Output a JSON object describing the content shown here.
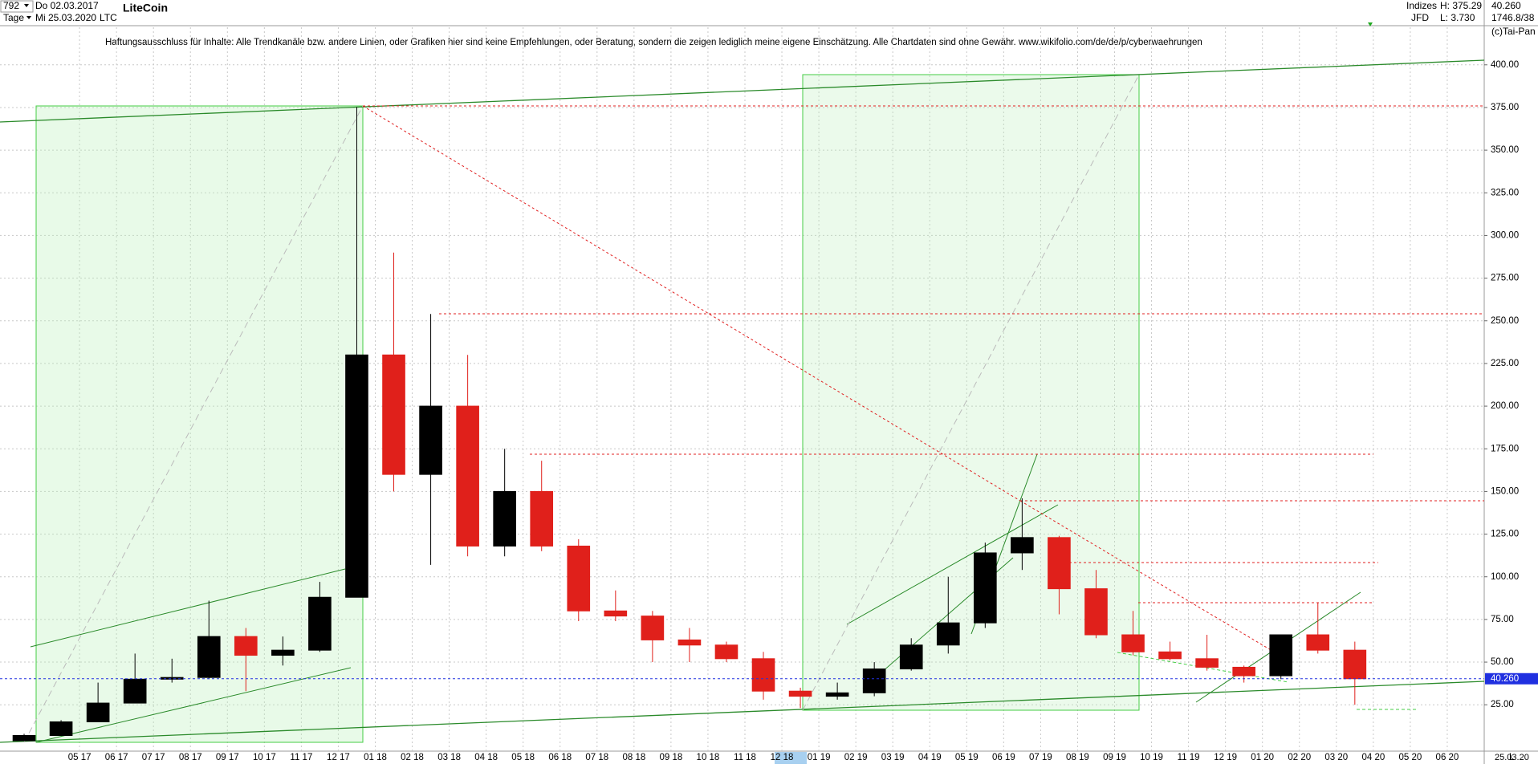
{
  "header": {
    "count": "792",
    "period": "Tage",
    "start_date": "Do 02.03.2017",
    "end_date": "Mi 25.03.2020",
    "instrument": "LiteCoin",
    "symbol": "LTC",
    "group": "Indizes",
    "source": "JFD",
    "high": "H: 375.29",
    "low": "L: 3.730",
    "last": "40.260",
    "info": "1746.8/38",
    "copyright": "(c)Tai-Pan",
    "footer_scale": "L",
    "footer_date": "25.03.20"
  },
  "chart_data": {
    "type": "candlestick",
    "subtitle": "Haftungsausschluss für Inhalte: Alle Trendkanäle bzw. andere Linien, oder Grafiken hier sind keine Empfehlungen, oder Beratung, sondern die zeigen lediglich meine eigene Einschätzung. Alle Chartdaten sind ohne Gewähr.  www.wikifolio.com/de/de/p/cyberwaehrungen",
    "x": [
      "2017-03",
      "2017-04",
      "2017-05",
      "2017-06",
      "2017-07",
      "2017-08",
      "2017-09",
      "2017-10",
      "2017-11",
      "2017-12",
      "2018-01",
      "2018-02",
      "2018-03",
      "2018-04",
      "2018-05",
      "2018-06",
      "2018-07",
      "2018-08",
      "2018-09",
      "2018-10",
      "2018-11",
      "2018-12",
      "2019-01",
      "2019-02",
      "2019-03",
      "2019-04",
      "2019-05",
      "2019-06",
      "2019-07",
      "2019-08",
      "2019-09",
      "2019-10",
      "2019-11",
      "2019-12",
      "2020-01",
      "2020-02",
      "2020-03"
    ],
    "open": [
      3.9,
      7,
      15,
      26,
      40,
      41,
      65,
      54,
      57,
      88,
      230,
      160,
      200,
      118,
      150,
      118,
      80,
      77,
      63,
      60,
      52,
      33,
      30,
      32,
      46,
      60,
      73,
      114,
      123,
      93,
      66,
      56,
      52,
      47,
      42,
      66,
      57
    ],
    "high": [
      8,
      16,
      38,
      55,
      52,
      86,
      70,
      65,
      97,
      375.29,
      290,
      254,
      230,
      175,
      168,
      122,
      92,
      80,
      70,
      62,
      56,
      35,
      38,
      50,
      64,
      100,
      120,
      146,
      124,
      104,
      80,
      62,
      66,
      48,
      66,
      85,
      62
    ],
    "low": [
      3.73,
      7,
      15,
      26,
      38,
      40,
      33,
      48,
      56,
      88,
      150,
      107,
      112,
      112,
      115,
      74,
      74,
      50,
      50,
      50,
      28,
      23.1,
      28,
      30,
      45,
      55,
      70,
      104,
      78,
      64,
      54,
      51,
      45,
      38,
      40,
      55,
      25
    ],
    "close": [
      7,
      15,
      26,
      40,
      41,
      65,
      54,
      57,
      88,
      230,
      160,
      200,
      118,
      150,
      118,
      80,
      77,
      63,
      60,
      52,
      33,
      30,
      32,
      46,
      60,
      73,
      114,
      123,
      93,
      66,
      56,
      52,
      47,
      42,
      66,
      57,
      40.26
    ],
    "up_color": "#000000",
    "down_color": "#e0201b",
    "xlim": [
      "2017-03",
      "2020-07"
    ],
    "xticks": [
      {
        "value": "2017-05",
        "label": "05 17"
      },
      {
        "value": "2017-06",
        "label": "06 17"
      },
      {
        "value": "2017-07",
        "label": "07 17"
      },
      {
        "value": "2017-08",
        "label": "08 17"
      },
      {
        "value": "2017-09",
        "label": "09 17"
      },
      {
        "value": "2017-10",
        "label": "10 17"
      },
      {
        "value": "2017-11",
        "label": "11 17"
      },
      {
        "value": "2017-12",
        "label": "12 17"
      },
      {
        "value": "2018-01",
        "label": "01 18"
      },
      {
        "value": "2018-02",
        "label": "02 18"
      },
      {
        "value": "2018-03",
        "label": "03 18"
      },
      {
        "value": "2018-04",
        "label": "04 18"
      },
      {
        "value": "2018-05",
        "label": "05 18"
      },
      {
        "value": "2018-06",
        "label": "06 18"
      },
      {
        "value": "2018-07",
        "label": "07 18"
      },
      {
        "value": "2018-08",
        "label": "08 18"
      },
      {
        "value": "2018-09",
        "label": "09 18"
      },
      {
        "value": "2018-10",
        "label": "10 18"
      },
      {
        "value": "2018-11",
        "label": "11 18"
      },
      {
        "value": "2018-12",
        "label": "12 18"
      },
      {
        "value": "2019-01",
        "label": "01 19"
      },
      {
        "value": "2019-02",
        "label": "02 19"
      },
      {
        "value": "2019-03",
        "label": "03 19"
      },
      {
        "value": "2019-04",
        "label": "04 19"
      },
      {
        "value": "2019-05",
        "label": "05 19"
      },
      {
        "value": "2019-06",
        "label": "06 19"
      },
      {
        "value": "2019-07",
        "label": "07 19"
      },
      {
        "value": "2019-08",
        "label": "08 19"
      },
      {
        "value": "2019-09",
        "label": "09 19"
      },
      {
        "value": "2019-10",
        "label": "10 19"
      },
      {
        "value": "2019-11",
        "label": "11 19"
      },
      {
        "value": "2019-12",
        "label": "12 19"
      },
      {
        "value": "2020-01",
        "label": "01 20"
      },
      {
        "value": "2020-02",
        "label": "02 20"
      },
      {
        "value": "2020-03",
        "label": "03 20"
      },
      {
        "value": "2020-04",
        "label": "04 20"
      },
      {
        "value": "2020-05",
        "label": "05 20"
      },
      {
        "value": "2020-06",
        "label": "06 20"
      }
    ],
    "ylim": [
      3,
      422
    ],
    "yticks": [
      {
        "value": 25,
        "label": "25.00"
      },
      {
        "value": 50,
        "label": "50.00"
      },
      {
        "value": 75,
        "label": "75.00"
      },
      {
        "value": 100,
        "label": "100.00"
      },
      {
        "value": 125,
        "label": "125.00"
      },
      {
        "value": 150,
        "label": "150.00"
      },
      {
        "value": 175,
        "label": "175.00"
      },
      {
        "value": 200,
        "label": "200.00"
      },
      {
        "value": 225,
        "label": "225.00"
      },
      {
        "value": 250,
        "label": "250.00"
      },
      {
        "value": 275,
        "label": "275.00"
      },
      {
        "value": 300,
        "label": "300.00"
      },
      {
        "value": 325,
        "label": "325.00"
      },
      {
        "value": 350,
        "label": "350.00"
      },
      {
        "value": 375,
        "label": "375.00"
      },
      {
        "value": 400,
        "label": "400.00"
      }
    ],
    "grid": true,
    "last_price": {
      "value": 40.26,
      "label": "40.260"
    },
    "last_price_color": "#2030e0"
  }
}
